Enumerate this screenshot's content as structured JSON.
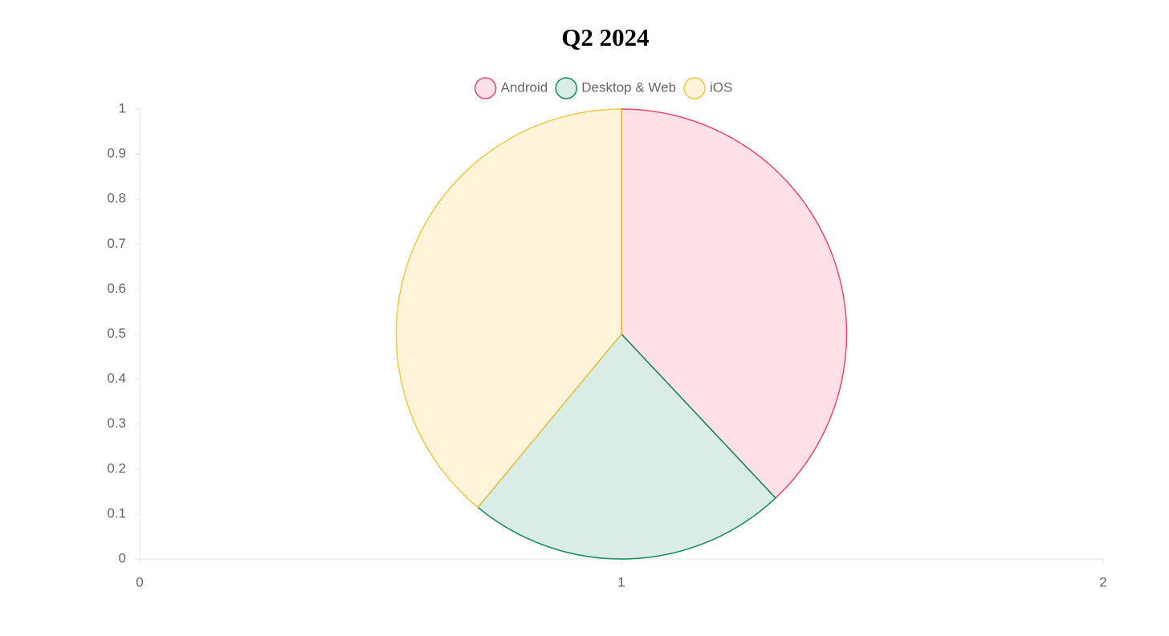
{
  "chart_data": {
    "type": "pie",
    "title": "Q2 2024",
    "categories": [
      "Android",
      "Desktop & Web",
      "iOS"
    ],
    "values": [
      38,
      23,
      39
    ],
    "colors": [
      "#f0476a",
      "#138a5c",
      "#f2c744"
    ],
    "fills": [
      "rgba(255,99,132,0.2)",
      "rgba(19,138,92,0.16)",
      "rgba(255,205,86,0.22)"
    ],
    "xlim": [
      0,
      2
    ],
    "xticks": [
      0,
      1,
      2
    ],
    "ylim": [
      0,
      1
    ],
    "yticks": [
      0,
      0.1,
      0.2,
      0.3,
      0.4,
      0.5,
      0.6,
      0.7,
      0.8,
      0.9,
      1
    ],
    "legend": "top"
  }
}
